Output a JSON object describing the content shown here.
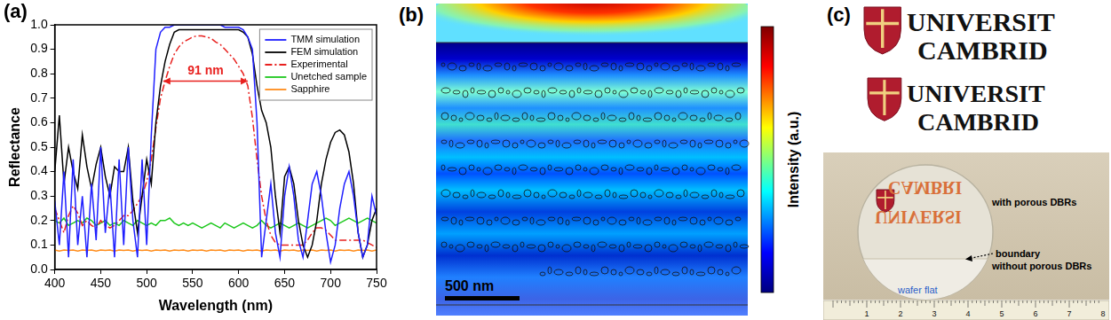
{
  "chart_data": {
    "panel": "(a)",
    "type": "line",
    "x_label": "Wavelength (nm)",
    "y_label": "Reflectance",
    "xlim": [
      400,
      750
    ],
    "ylim": [
      0,
      1
    ],
    "xticks": [
      400,
      450,
      500,
      550,
      600,
      650,
      700,
      750
    ],
    "yticks": [
      {
        "value": 0,
        "label": "0.0"
      },
      0.1,
      0.2,
      0.3,
      0.4,
      0.5,
      0.6,
      0.7,
      0.8,
      0.9,
      {
        "value": 1,
        "label": "1.0"
      }
    ],
    "grid": false,
    "legend": "upper right",
    "annotations": [
      {
        "text": "91 nm",
        "x_start": 518,
        "x_end": 610,
        "y": 0.77
      }
    ],
    "x": [
      400,
      405,
      410,
      415,
      420,
      425,
      430,
      435,
      440,
      445,
      450,
      455,
      460,
      465,
      470,
      475,
      480,
      485,
      490,
      495,
      500,
      505,
      510,
      515,
      520,
      525,
      530,
      535,
      540,
      545,
      550,
      555,
      560,
      565,
      570,
      575,
      580,
      585,
      590,
      595,
      600,
      605,
      610,
      615,
      620,
      625,
      630,
      635,
      640,
      645,
      650,
      655,
      660,
      665,
      670,
      675,
      680,
      685,
      690,
      695,
      700,
      705,
      710,
      715,
      720,
      725,
      730,
      735,
      740,
      745,
      750
    ],
    "series": [
      {
        "name": "TMM simulation",
        "color": "#1f1fff",
        "line_style": "solid",
        "values": [
          0.28,
          0.1,
          0.4,
          0.05,
          0.45,
          0.1,
          0.3,
          0.05,
          0.35,
          0.12,
          0.5,
          0.15,
          0.35,
          0.05,
          0.45,
          0.1,
          0.5,
          0.2,
          0.05,
          0.45,
          0.1,
          0.55,
          0.9,
          0.97,
          0.99,
          0.99,
          1.0,
          1.0,
          1.0,
          1.0,
          1.0,
          1.0,
          1.0,
          1.0,
          1.0,
          1.0,
          1.0,
          0.99,
          0.99,
          0.99,
          0.99,
          0.98,
          0.95,
          0.9,
          0.6,
          0.05,
          0.2,
          0.35,
          0.15,
          0.05,
          0.3,
          0.42,
          0.3,
          0.12,
          0.05,
          0.2,
          0.35,
          0.4,
          0.3,
          0.15,
          0.03,
          0.1,
          0.25,
          0.35,
          0.4,
          0.3,
          0.15,
          0.05,
          0.1,
          0.3,
          0.22
        ]
      },
      {
        "name": "FEM simulation",
        "color": "#000000",
        "line_style": "solid",
        "values": [
          0.4,
          0.63,
          0.35,
          0.5,
          0.4,
          0.33,
          0.55,
          0.42,
          0.33,
          0.43,
          0.5,
          0.38,
          0.3,
          0.42,
          0.4,
          0.4,
          0.5,
          0.28,
          0.15,
          0.3,
          0.45,
          0.35,
          0.6,
          0.75,
          0.85,
          0.92,
          0.97,
          0.98,
          0.98,
          0.98,
          0.98,
          0.98,
          0.98,
          0.98,
          0.98,
          0.98,
          0.98,
          0.98,
          0.98,
          0.98,
          0.98,
          0.97,
          0.95,
          0.88,
          0.75,
          0.65,
          0.6,
          0.5,
          0.3,
          0.15,
          0.38,
          0.42,
          0.35,
          0.2,
          0.1,
          0.05,
          0.1,
          0.2,
          0.35,
          0.45,
          0.52,
          0.56,
          0.57,
          0.55,
          0.48,
          0.35,
          0.15,
          0.05,
          0.1,
          0.2,
          0.25
        ]
      },
      {
        "name": "Experimental",
        "color": "#e8201e",
        "line_style": "dashdot",
        "values": [
          0.25,
          0.2,
          0.15,
          0.22,
          0.26,
          0.23,
          0.18,
          0.2,
          0.18,
          0.17,
          0.2,
          0.18,
          0.17,
          0.18,
          0.2,
          0.22,
          0.22,
          0.24,
          0.27,
          0.3,
          0.36,
          0.45,
          0.58,
          0.7,
          0.77,
          0.83,
          0.88,
          0.91,
          0.93,
          0.94,
          0.95,
          0.955,
          0.955,
          0.95,
          0.945,
          0.93,
          0.92,
          0.9,
          0.88,
          0.86,
          0.83,
          0.8,
          0.75,
          0.62,
          0.45,
          0.3,
          0.2,
          0.14,
          0.11,
          0.1,
          0.1,
          0.1,
          0.1,
          0.1,
          0.1,
          0.12,
          0.15,
          0.17,
          0.17,
          0.16,
          0.14,
          0.12,
          0.12,
          0.12,
          0.12,
          0.12,
          0.12,
          0.12,
          0.11,
          0.1,
          0.09
        ]
      },
      {
        "name": "Unetched sample",
        "color": "#1ec81e",
        "line_style": "solid",
        "values": [
          0.2,
          0.19,
          0.21,
          0.18,
          0.19,
          0.2,
          0.19,
          0.21,
          0.2,
          0.18,
          0.19,
          0.2,
          0.18,
          0.19,
          0.18,
          0.2,
          0.19,
          0.18,
          0.2,
          0.19,
          0.18,
          0.19,
          0.18,
          0.2,
          0.2,
          0.21,
          0.19,
          0.18,
          0.19,
          0.18,
          0.19,
          0.18,
          0.17,
          0.18,
          0.19,
          0.18,
          0.17,
          0.19,
          0.18,
          0.17,
          0.18,
          0.19,
          0.18,
          0.17,
          0.18,
          0.2,
          0.18,
          0.17,
          0.18,
          0.19,
          0.18,
          0.17,
          0.18,
          0.19,
          0.18,
          0.17,
          0.18,
          0.19,
          0.2,
          0.21,
          0.2,
          0.18,
          0.19,
          0.2,
          0.21,
          0.2,
          0.19,
          0.2,
          0.21,
          0.2,
          0.19
        ]
      },
      {
        "name": "Sapphire",
        "color": "#ff8c1a",
        "line_style": "solid",
        "values": [
          0.08,
          0.075,
          0.08,
          0.078,
          0.08,
          0.075,
          0.08,
          0.078,
          0.08,
          0.075,
          0.08,
          0.078,
          0.08,
          0.075,
          0.08,
          0.078,
          0.08,
          0.075,
          0.08,
          0.078,
          0.08,
          0.075,
          0.08,
          0.078,
          0.08,
          0.075,
          0.08,
          0.078,
          0.08,
          0.075,
          0.08,
          0.078,
          0.08,
          0.075,
          0.08,
          0.078,
          0.08,
          0.075,
          0.08,
          0.078,
          0.08,
          0.075,
          0.08,
          0.078,
          0.08,
          0.075,
          0.08,
          0.078,
          0.08,
          0.075,
          0.08,
          0.078,
          0.08,
          0.075,
          0.08,
          0.078,
          0.08,
          0.075,
          0.08,
          0.078,
          0.08,
          0.075,
          0.08,
          0.078,
          0.08,
          0.075,
          0.08,
          0.078,
          0.08,
          0.075,
          0.08
        ]
      }
    ]
  },
  "field_map": {
    "panel": "(b)",
    "scale_bar": "500 nm",
    "colorbar_label": "Intensity (a.u.)"
  },
  "photo": {
    "panel": "(c)",
    "print_lines": [
      [
        "UNIVERSIT",
        "CAMBRID"
      ],
      [
        "UNIVERSIT",
        "CAMBRID"
      ]
    ],
    "reflection_lines": [
      "CAMBRI",
      "UNIVERSI"
    ],
    "with_label": "with porous DBRs",
    "boundary_label": [
      "boundary",
      "without porous DBRs"
    ],
    "flat_label": "wafer flat",
    "ruler_numbers": [
      1,
      2,
      3,
      4,
      5,
      6,
      7,
      8
    ]
  }
}
